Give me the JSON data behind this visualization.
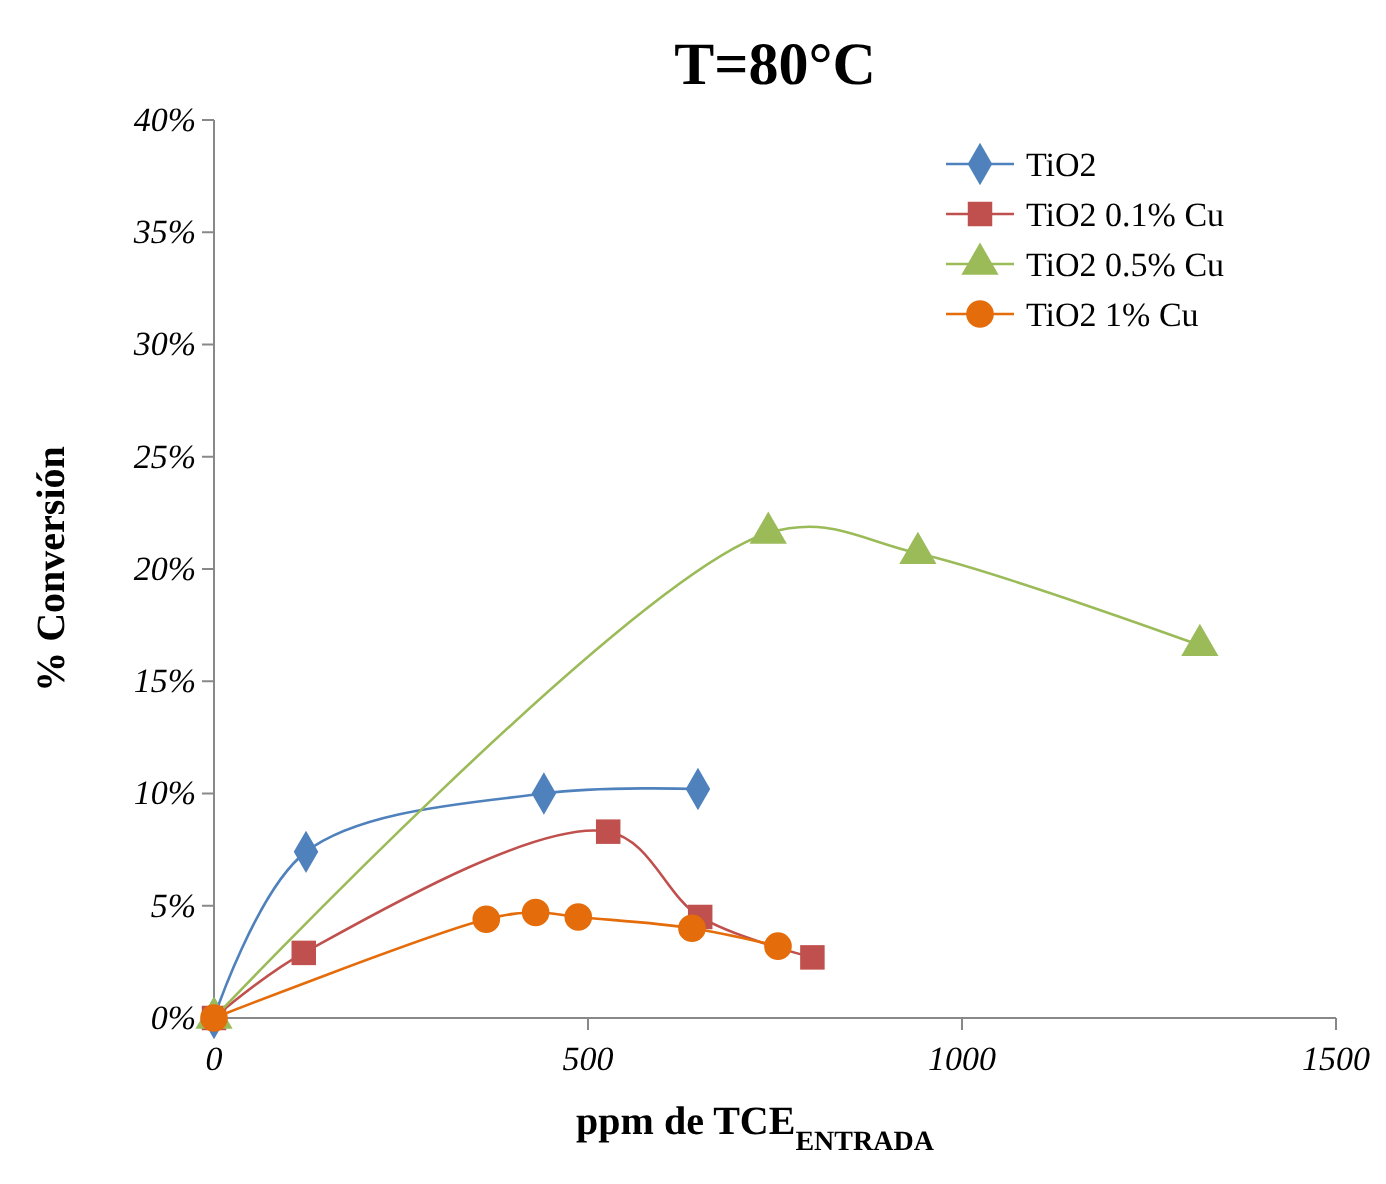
{
  "chart_data": {
    "type": "line",
    "title": "T=80°C",
    "xlabel": "ppm de TCE$_{ENTRADA}$",
    "ylabel": "% Conversión",
    "xlim": [
      0,
      1500
    ],
    "xticks": [
      0,
      500,
      1000,
      1500
    ],
    "ylim": [
      0,
      40
    ],
    "yticks": [
      {
        "value": 0,
        "label": "0%"
      },
      {
        "value": 5,
        "label": "5%"
      },
      {
        "value": 10,
        "label": "10%"
      },
      {
        "value": 15,
        "label": "15%"
      },
      {
        "value": 20,
        "label": "20%"
      },
      {
        "value": 25,
        "label": "25%"
      },
      {
        "value": 30,
        "label": "30%"
      },
      {
        "value": 35,
        "label": "35%"
      },
      {
        "value": 40,
        "label": "40%"
      }
    ],
    "grid": false,
    "legend": "top right",
    "line_style": "solid",
    "series": [
      {
        "name": "TiO2",
        "color": "#4f81bd",
        "marker": "diamond",
        "x": [
          0,
          123,
          441,
          647
        ],
        "values": [
          0,
          7.4,
          10.0,
          10.2
        ]
      },
      {
        "name": "TiO2 0.1% Cu",
        "color": "#c0504d",
        "marker": "square",
        "x": [
          0,
          120,
          527,
          650,
          800
        ],
        "values": [
          0,
          2.9,
          8.3,
          4.5,
          2.7
        ]
      },
      {
        "name": "TiO2 0.5% Cu",
        "color": "#9bbb59",
        "marker": "triangle",
        "x": [
          0,
          741,
          941,
          1318
        ],
        "values": [
          0,
          21.6,
          20.7,
          16.6
        ]
      },
      {
        "name": "TiO2 1% Cu",
        "color": "#e46c0a",
        "marker": "circle",
        "x": [
          0,
          364,
          430,
          487,
          639,
          754
        ],
        "values": [
          0,
          4.4,
          4.7,
          4.5,
          4.0,
          3.2
        ]
      }
    ]
  }
}
